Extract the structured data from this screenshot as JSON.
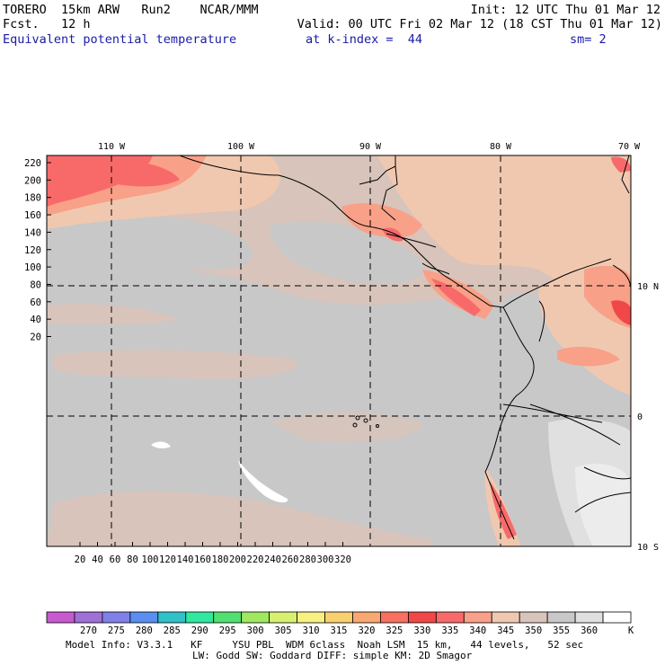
{
  "header": {
    "left_line1": "TORERO  15km ARW   Run2    NCAR/MMM",
    "left_line2": "Fcst.   12 h",
    "right_line1": "Init: 12 UTC Thu 01 Mar 12",
    "right_line2": "Valid: 00 UTC Fri 02 Mar 12 (18 CST Thu 01 Mar 12)",
    "field_name": "Equivalent potential temperature",
    "level": "at k-index =  44",
    "smoothing": "sm= 2"
  },
  "map": {
    "lon_labels": [
      "110 W",
      "100 W",
      "90 W",
      "80 W",
      "70 W"
    ],
    "lat_labels": [
      "10 N",
      "0",
      "10 S"
    ],
    "y_ticks": [
      "220",
      "200",
      "180",
      "160",
      "140",
      "120",
      "100",
      "80",
      "60",
      "40",
      "20"
    ],
    "x_ticks": [
      "20",
      "40",
      "60",
      "80",
      "100",
      "120",
      "140",
      "160",
      "180",
      "200",
      "220",
      "240",
      "260",
      "280",
      "300",
      "320"
    ]
  },
  "colorbar": {
    "labels": [
      "270",
      "275",
      "280",
      "285",
      "290",
      "295",
      "300",
      "305",
      "310",
      "315",
      "320",
      "325",
      "330",
      "335",
      "340",
      "345",
      "350",
      "355",
      "360"
    ],
    "unit": "K",
    "colors": [
      "#c85ad0",
      "#a070d8",
      "#8080e8",
      "#5a8ef0",
      "#30c0c8",
      "#30e8a0",
      "#50e070",
      "#a0e860",
      "#d8f070",
      "#f8f080",
      "#f8d070",
      "#f8a870",
      "#f87060",
      "#f04848",
      "#f86a6a",
      "#f8a088",
      "#f0c8b0",
      "#d8c4ba",
      "#c8c8c8",
      "#e0e0e0",
      "#ffffff"
    ]
  },
  "model_info": {
    "line1": "Model Info: V3.3.1   KF     YSU PBL  WDM 6class  Noah LSM  15 km,   44 levels,   52 sec",
    "line2": "LW: Godd SW: Goddard DIFF: simple KM: 2D Smagor"
  }
}
